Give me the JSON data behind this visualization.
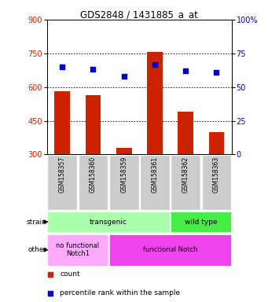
{
  "title": "GDS2848 / 1431885_a_at",
  "samples": [
    "GSM158357",
    "GSM158360",
    "GSM158359",
    "GSM158361",
    "GSM158362",
    "GSM158363"
  ],
  "counts": [
    580,
    565,
    330,
    755,
    490,
    400
  ],
  "percentiles": [
    65,
    63,
    58,
    67,
    62,
    61
  ],
  "ylim_left": [
    300,
    900
  ],
  "ylim_right": [
    0,
    100
  ],
  "yticks_left": [
    300,
    450,
    600,
    750,
    900
  ],
  "yticks_right": [
    0,
    25,
    50,
    75,
    100
  ],
  "ytick_labels_right": [
    "0",
    "25",
    "50",
    "75",
    "100%"
  ],
  "bar_color": "#cc2200",
  "dot_color": "#0000cc",
  "bar_base": 300,
  "strain_groups": [
    {
      "text": "transgenic",
      "start": 0,
      "end": 4,
      "color": "#aaffaa"
    },
    {
      "text": "wild type",
      "start": 4,
      "end": 6,
      "color": "#44ee44"
    }
  ],
  "other_groups": [
    {
      "text": "no functional\nNotch1",
      "start": 0,
      "end": 2,
      "color": "#ffaaff"
    },
    {
      "text": "functional Notch",
      "start": 2,
      "end": 6,
      "color": "#ee44ee"
    }
  ],
  "strain_row_label": "strain",
  "other_row_label": "other",
  "legend_count_label": "count",
  "legend_pct_label": "percentile rank within the sample",
  "left_tick_color": "#cc2200",
  "right_tick_color": "#0000cc",
  "xticklabel_bg": "#cccccc",
  "bg_color": "#ffffff"
}
